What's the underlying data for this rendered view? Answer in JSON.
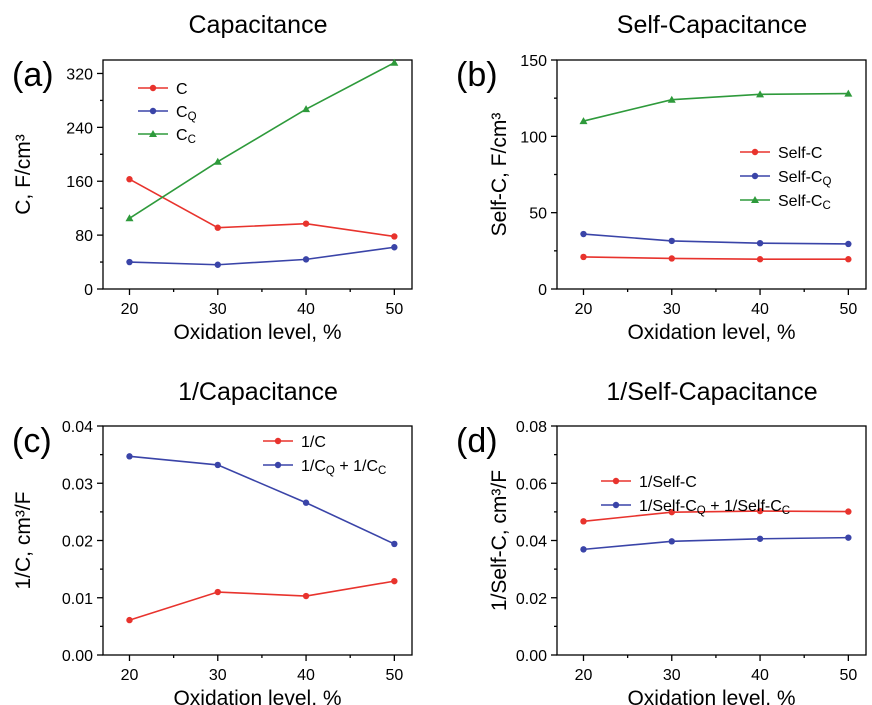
{
  "chart_data": [
    {
      "type": "line",
      "panel": "(a)",
      "title": "Capacitance",
      "xlabel": "Oxidation level, %",
      "ylabel": "C, F/cm³",
      "x": [
        20,
        30,
        40,
        50
      ],
      "xlim": [
        17,
        52
      ],
      "ylim": [
        0,
        340
      ],
      "xticks": [
        "20",
        "30",
        "40",
        "50"
      ],
      "yticks": [
        0,
        80,
        160,
        240,
        320
      ],
      "ytick_labels": [
        "0",
        "80",
        "160",
        "240",
        "320"
      ],
      "grid": false,
      "legend": "top-left",
      "series": [
        {
          "name": "C",
          "label": "C",
          "sub": "",
          "color": "#e8332d",
          "marker": "circle",
          "values": [
            163,
            91,
            97,
            78
          ]
        },
        {
          "name": "CQ",
          "label": "C",
          "sub": "Q",
          "color": "#3a44a8",
          "marker": "circle",
          "values": [
            40,
            36,
            44,
            62
          ]
        },
        {
          "name": "CC",
          "label": "C",
          "sub": "C",
          "color": "#2e9a3b",
          "marker": "triangle",
          "values": [
            105,
            189,
            267,
            336
          ]
        }
      ]
    },
    {
      "type": "line",
      "panel": "(b)",
      "title": "Self-Capacitance",
      "xlabel": "Oxidation level, %",
      "ylabel": "Self-C, F/cm³",
      "x": [
        20,
        30,
        40,
        50
      ],
      "xlim": [
        17,
        52
      ],
      "ylim": [
        0,
        150
      ],
      "xticks": [
        "20",
        "30",
        "40",
        "50"
      ],
      "yticks": [
        0,
        50,
        100,
        150
      ],
      "ytick_labels": [
        "0",
        "50",
        "100",
        "150"
      ],
      "grid": false,
      "legend": "center-right",
      "series": [
        {
          "name": "Self-C",
          "label": "Self-C",
          "sub": "",
          "color": "#e8332d",
          "marker": "circle",
          "values": [
            21,
            20,
            19.5,
            19.5
          ]
        },
        {
          "name": "Self-CQ",
          "label": "Self-C",
          "sub": "Q",
          "color": "#3a44a8",
          "marker": "circle",
          "values": [
            36,
            31.5,
            30,
            29.5
          ]
        },
        {
          "name": "Self-CC",
          "label": "Self-C",
          "sub": "C",
          "color": "#2e9a3b",
          "marker": "triangle",
          "values": [
            110,
            124,
            127.5,
            128
          ]
        }
      ]
    },
    {
      "type": "line",
      "panel": "(c)",
      "title": "1/Capacitance",
      "xlabel": "Oxidation level, %",
      "ylabel": "1/C, cm³/F",
      "x": [
        20,
        30,
        40,
        50
      ],
      "xlim": [
        17,
        52
      ],
      "ylim": [
        0,
        0.04
      ],
      "xticks": [
        "20",
        "30",
        "40",
        "50"
      ],
      "yticks": [
        0,
        0.01,
        0.02,
        0.03,
        0.04
      ],
      "ytick_labels": [
        "0.00",
        "0.01",
        "0.02",
        "0.03",
        "0.04"
      ],
      "grid": false,
      "legend": "top-right",
      "series": [
        {
          "name": "1/C",
          "label": "1/C",
          "sub": "",
          "color": "#e8332d",
          "marker": "circle",
          "values": [
            0.0061,
            0.011,
            0.0103,
            0.0129
          ]
        },
        {
          "name": "1/CQ + 1/CC",
          "label": "1/C",
          "sub": "Q",
          "label2": " + 1/C",
          "sub2": "C",
          "color": "#3a44a8",
          "marker": "circle",
          "values": [
            0.0347,
            0.0332,
            0.0266,
            0.0194
          ]
        }
      ]
    },
    {
      "type": "line",
      "panel": "(d)",
      "title": "1/Self-Capacitance",
      "xlabel": "Oxidation level, %",
      "ylabel": "1/Self-C, cm³/F",
      "x": [
        20,
        30,
        40,
        50
      ],
      "xlim": [
        17,
        52
      ],
      "ylim": [
        0,
        0.08
      ],
      "xticks": [
        "20",
        "30",
        "40",
        "50"
      ],
      "yticks": [
        0,
        0.02,
        0.04,
        0.06,
        0.08
      ],
      "ytick_labels": [
        "0.00",
        "0.02",
        "0.04",
        "0.06",
        "0.08"
      ],
      "grid": false,
      "legend": "top-left",
      "series": [
        {
          "name": "1/Self-C",
          "label": "1/Self-C",
          "sub": "",
          "color": "#e8332d",
          "marker": "circle",
          "values": [
            0.0467,
            0.0499,
            0.0503,
            0.0501
          ]
        },
        {
          "name": "1/Self-CQ + 1/Self-CC",
          "label": "1/Self-C",
          "sub": "Q",
          "label2": " + 1/Self-C",
          "sub2": "C",
          "color": "#3a44a8",
          "marker": "circle",
          "values": [
            0.0369,
            0.0397,
            0.0406,
            0.041
          ]
        }
      ]
    }
  ]
}
